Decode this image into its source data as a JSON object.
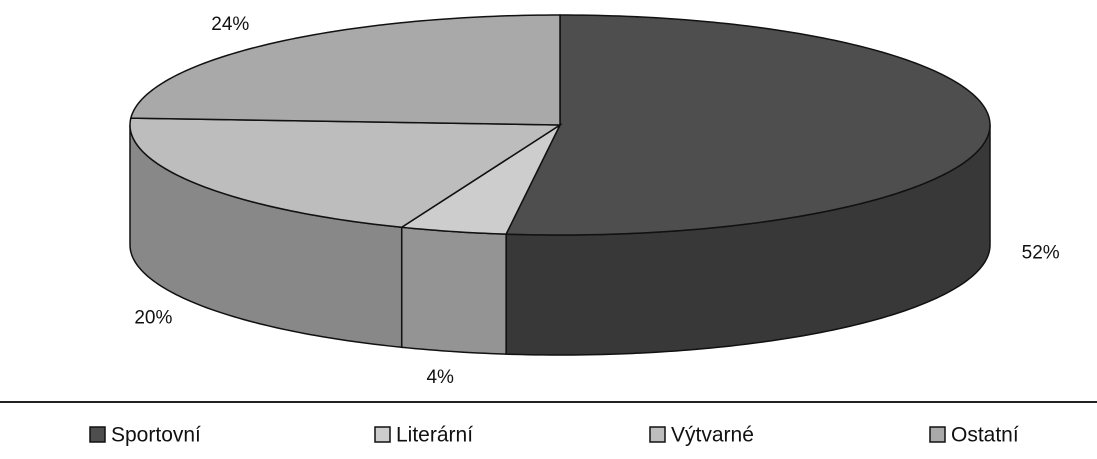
{
  "chart_data": {
    "type": "pie",
    "categories": [
      "Sportovní",
      "Literární",
      "Výtvarné",
      "Ostatní"
    ],
    "values": [
      52,
      4,
      20,
      24
    ],
    "value_labels": [
      "52%",
      "4%",
      "20%",
      "24%"
    ],
    "colors": [
      "#4e4e4e",
      "#cdcdcd",
      "#bdbdbd",
      "#a9a9a9"
    ],
    "legend": "bottom"
  }
}
